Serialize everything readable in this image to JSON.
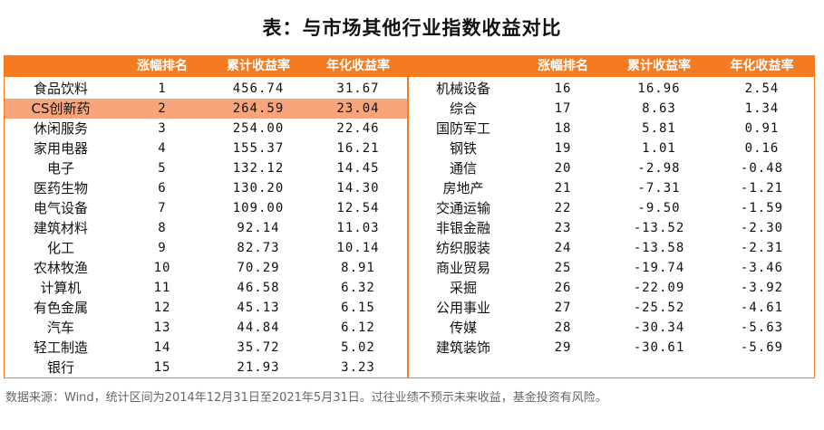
{
  "title": "表：与市场其他行业指数收益对比",
  "headers": {
    "rank": "涨幅排名",
    "cumulative": "累计收益率",
    "annualized": "年化收益率"
  },
  "left_rows": [
    {
      "name": "食品饮料",
      "rank": "1",
      "cum": "456.74",
      "ann": "31.67",
      "highlight": false
    },
    {
      "name": "CS创新药",
      "rank": "2",
      "cum": "264.59",
      "ann": "23.04",
      "highlight": true
    },
    {
      "name": "休闲服务",
      "rank": "3",
      "cum": "254.00",
      "ann": "22.46",
      "highlight": false
    },
    {
      "name": "家用电器",
      "rank": "4",
      "cum": "155.37",
      "ann": "16.21",
      "highlight": false
    },
    {
      "name": "电子",
      "rank": "5",
      "cum": "132.12",
      "ann": "14.45",
      "highlight": false
    },
    {
      "name": "医药生物",
      "rank": "6",
      "cum": "130.20",
      "ann": "14.30",
      "highlight": false
    },
    {
      "name": "电气设备",
      "rank": "7",
      "cum": "109.00",
      "ann": "12.54",
      "highlight": false
    },
    {
      "name": "建筑材料",
      "rank": "8",
      "cum": "92.14",
      "ann": "11.03",
      "highlight": false
    },
    {
      "name": "化工",
      "rank": "9",
      "cum": "82.73",
      "ann": "10.14",
      "highlight": false
    },
    {
      "name": "农林牧渔",
      "rank": "10",
      "cum": "70.29",
      "ann": "8.91",
      "highlight": false
    },
    {
      "name": "计算机",
      "rank": "11",
      "cum": "46.58",
      "ann": "6.32",
      "highlight": false
    },
    {
      "name": "有色金属",
      "rank": "12",
      "cum": "45.13",
      "ann": "6.15",
      "highlight": false
    },
    {
      "name": "汽车",
      "rank": "13",
      "cum": "44.84",
      "ann": "6.12",
      "highlight": false
    },
    {
      "name": "轻工制造",
      "rank": "14",
      "cum": "35.72",
      "ann": "5.02",
      "highlight": false
    },
    {
      "name": "银行",
      "rank": "15",
      "cum": "21.93",
      "ann": "3.23",
      "highlight": false
    }
  ],
  "right_rows": [
    {
      "name": "机械设备",
      "rank": "16",
      "cum": "16.96",
      "ann": "2.54"
    },
    {
      "name": "综合",
      "rank": "17",
      "cum": "8.63",
      "ann": "1.34"
    },
    {
      "name": "国防军工",
      "rank": "18",
      "cum": "5.81",
      "ann": "0.91"
    },
    {
      "name": "钢铁",
      "rank": "19",
      "cum": "1.01",
      "ann": "0.16"
    },
    {
      "name": "通信",
      "rank": "20",
      "cum": "-2.98",
      "ann": "-0.48"
    },
    {
      "name": "房地产",
      "rank": "21",
      "cum": "-7.31",
      "ann": "-1.21"
    },
    {
      "name": "交通运输",
      "rank": "22",
      "cum": "-9.50",
      "ann": "-1.59"
    },
    {
      "name": "非银金融",
      "rank": "23",
      "cum": "-13.52",
      "ann": "-2.30"
    },
    {
      "name": "纺织服装",
      "rank": "24",
      "cum": "-13.58",
      "ann": "-2.31"
    },
    {
      "name": "商业贸易",
      "rank": "25",
      "cum": "-19.74",
      "ann": "-3.46"
    },
    {
      "name": "采掘",
      "rank": "26",
      "cum": "-22.09",
      "ann": "-3.92"
    },
    {
      "name": "公用事业",
      "rank": "27",
      "cum": "-25.52",
      "ann": "-4.61"
    },
    {
      "name": "传媒",
      "rank": "28",
      "cum": "-30.34",
      "ann": "-5.63"
    },
    {
      "name": "建筑装饰",
      "rank": "29",
      "cum": "-30.61",
      "ann": "-5.69"
    }
  ],
  "source_note": "数据来源：Wind，统计区间为2014年12月31日至2021年5月31日。过往业绩不预示未来收益，基金投资有风险。",
  "colors": {
    "accent": "#f47b20",
    "highlight": "#f9a57c"
  }
}
